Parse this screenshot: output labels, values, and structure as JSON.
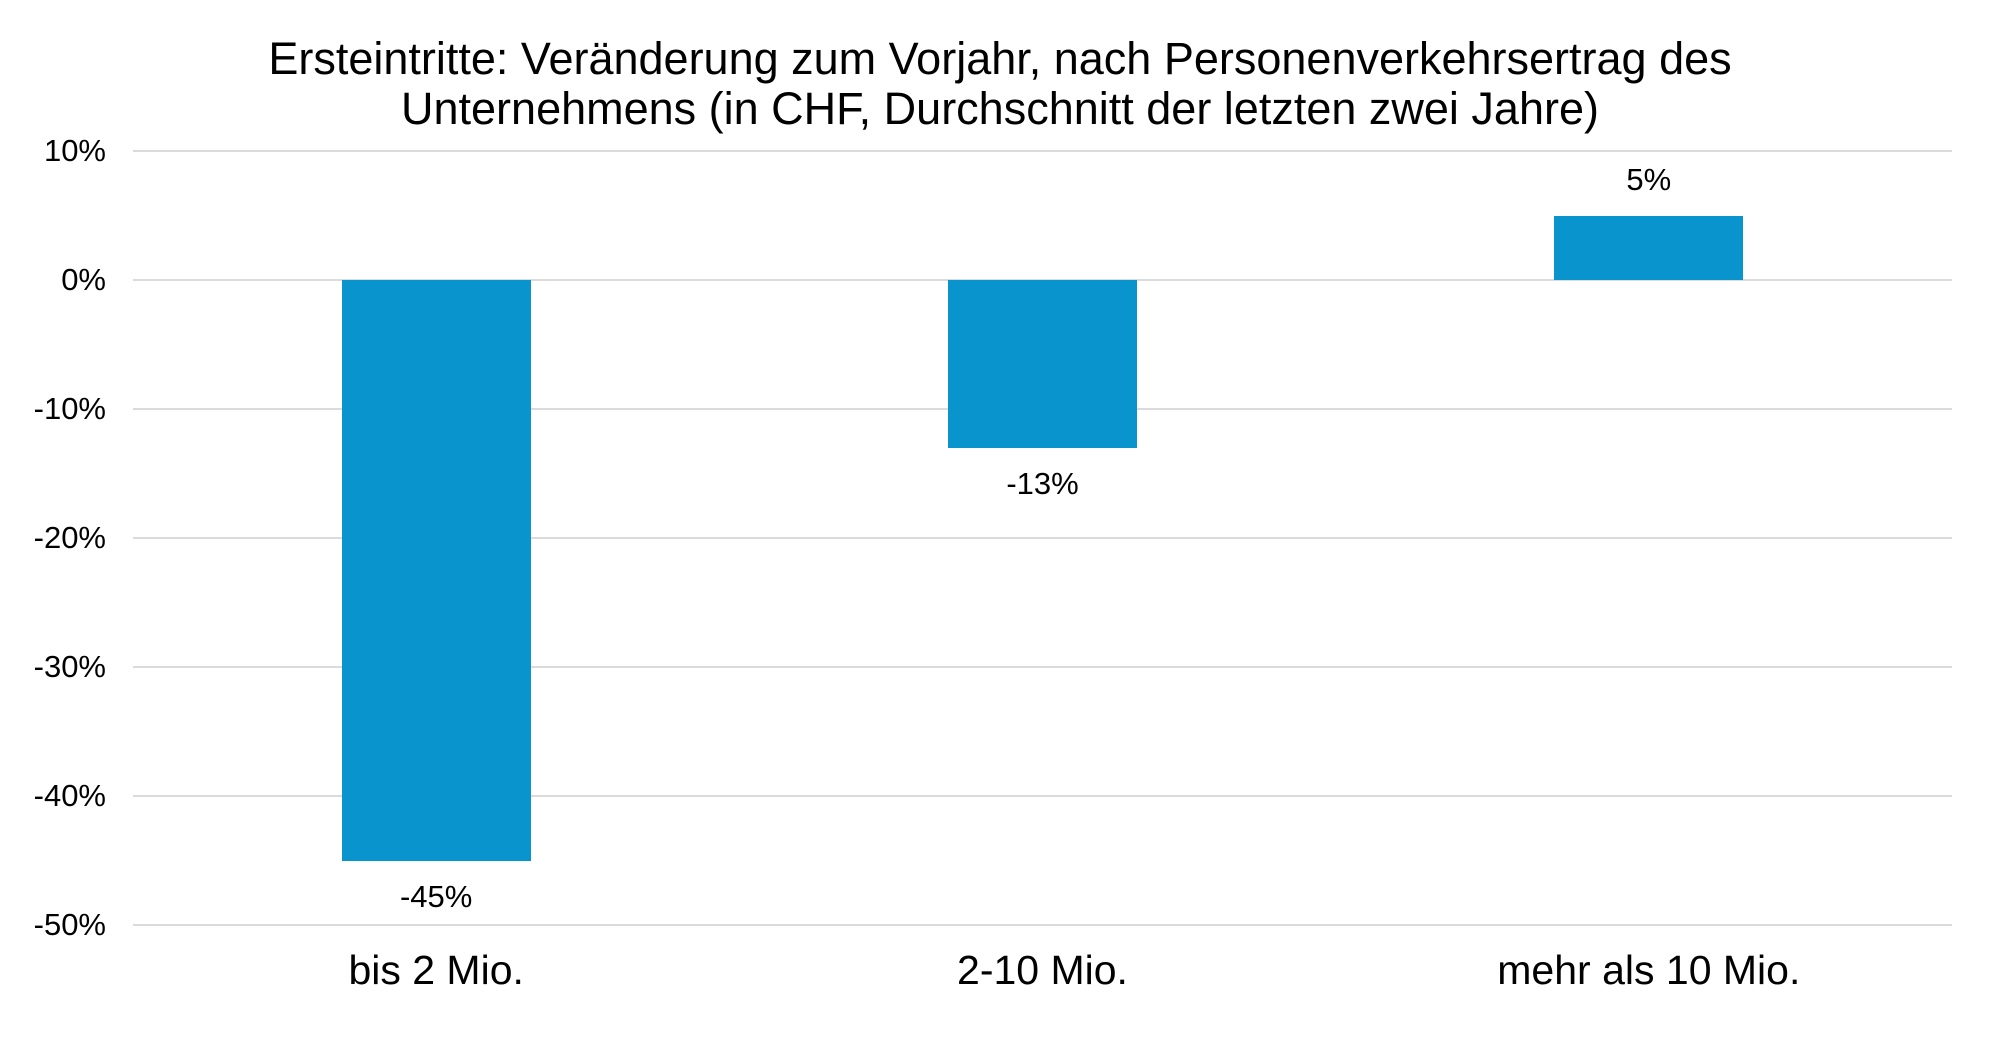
{
  "chart_data": {
    "type": "bar",
    "title": "Ersteintritte: Veränderung zum Vorjahr, nach Personenverkehrsertrag des Unternehmens (in CHF, Durchschnitt der letzten zwei Jahre)",
    "title_lines": [
      "Ersteintritte: Veränderung zum Vorjahr, nach Personenverkehrsertrag des",
      "Unternehmens (in CHF, Durchschnitt der letzten zwei Jahre)"
    ],
    "categories": [
      "bis 2 Mio.",
      "2-10 Mio.",
      "mehr als 10 Mio."
    ],
    "values": [
      -45,
      -13,
      5
    ],
    "value_labels": [
      "-45%",
      "-13%",
      "5%"
    ],
    "xlabel": "",
    "ylabel": "",
    "ylim": [
      -50,
      10
    ],
    "yticks": [
      10,
      0,
      -10,
      -20,
      -30,
      -40,
      -50
    ],
    "ytick_labels": [
      "10%",
      "0%",
      "-10%",
      "-20%",
      "-30%",
      "-40%",
      "-50%"
    ],
    "grid": true,
    "legend": false,
    "colors": {
      "bar": "#0A94CE",
      "gridline": "#DBDBDB",
      "text": "#000000",
      "background": "#FFFFFF"
    }
  }
}
